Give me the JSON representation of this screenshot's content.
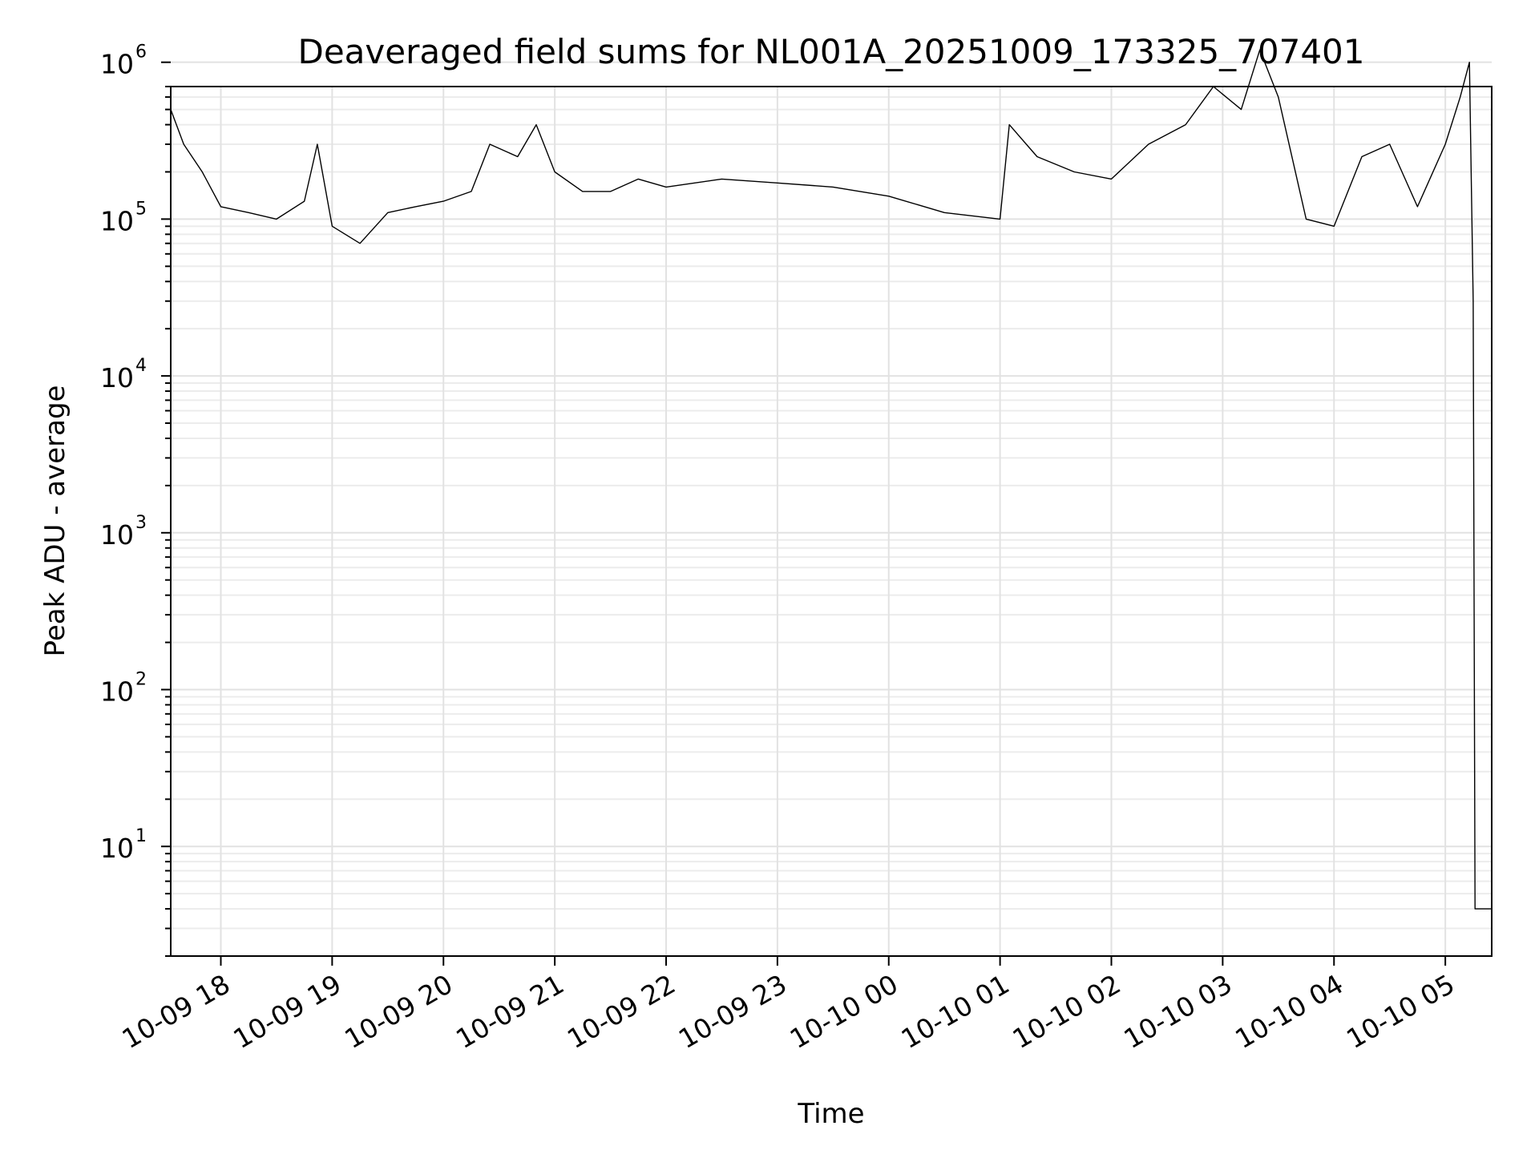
{
  "chart_data": {
    "type": "line",
    "title": "Deaveraged field sums for NL001A_20251009_173325_707401",
    "xlabel": "Time",
    "ylabel": "Peak ADU - average",
    "yscale": "log",
    "ylim": [
      2,
      700000
    ],
    "xlim": [
      "2025-10-09 17:33",
      "2025-10-10 05:25"
    ],
    "grid": true,
    "x_ticks": [
      {
        "value": "2025-10-09 18:00",
        "label": "10-09 18"
      },
      {
        "value": "2025-10-09 19:00",
        "label": "10-09 19"
      },
      {
        "value": "2025-10-09 20:00",
        "label": "10-09 20"
      },
      {
        "value": "2025-10-09 21:00",
        "label": "10-09 21"
      },
      {
        "value": "2025-10-09 22:00",
        "label": "10-09 22"
      },
      {
        "value": "2025-10-09 23:00",
        "label": "10-09 23"
      },
      {
        "value": "2025-10-10 00:00",
        "label": "10-10 00"
      },
      {
        "value": "2025-10-10 01:00",
        "label": "10-10 01"
      },
      {
        "value": "2025-10-10 02:00",
        "label": "10-10 02"
      },
      {
        "value": "2025-10-10 03:00",
        "label": "10-10 03"
      },
      {
        "value": "2025-10-10 04:00",
        "label": "10-10 04"
      },
      {
        "value": "2025-10-10 05:00",
        "label": "10-10 05"
      }
    ],
    "y_ticks": [
      {
        "value": 10,
        "base": "10",
        "exp": "1"
      },
      {
        "value": 100,
        "base": "10",
        "exp": "2"
      },
      {
        "value": 1000,
        "base": "10",
        "exp": "3"
      },
      {
        "value": 10000,
        "base": "10",
        "exp": "4"
      },
      {
        "value": 100000,
        "base": "10",
        "exp": "5"
      },
      {
        "value": 1000000,
        "base": "10",
        "exp": "6"
      }
    ],
    "series": [
      {
        "color": "#000000",
        "x": [
          "2025-10-09 17:33",
          "2025-10-09 17:40",
          "2025-10-09 17:50",
          "2025-10-09 18:00",
          "2025-10-09 18:15",
          "2025-10-09 18:30",
          "2025-10-09 18:45",
          "2025-10-09 18:52",
          "2025-10-09 19:00",
          "2025-10-09 19:15",
          "2025-10-09 19:30",
          "2025-10-09 19:45",
          "2025-10-09 20:00",
          "2025-10-09 20:15",
          "2025-10-09 20:25",
          "2025-10-09 20:40",
          "2025-10-09 20:50",
          "2025-10-09 21:00",
          "2025-10-09 21:15",
          "2025-10-09 21:30",
          "2025-10-09 21:45",
          "2025-10-09 22:00",
          "2025-10-09 22:30",
          "2025-10-09 23:00",
          "2025-10-09 23:30",
          "2025-10-10 00:00",
          "2025-10-10 00:30",
          "2025-10-10 01:00",
          "2025-10-10 01:05",
          "2025-10-10 01:20",
          "2025-10-10 01:40",
          "2025-10-10 02:00",
          "2025-10-10 02:20",
          "2025-10-10 02:40",
          "2025-10-10 02:55",
          "2025-10-10 03:10",
          "2025-10-10 03:20",
          "2025-10-10 03:30",
          "2025-10-10 03:45",
          "2025-10-10 04:00",
          "2025-10-10 04:15",
          "2025-10-10 04:30",
          "2025-10-10 04:45",
          "2025-10-10 05:00",
          "2025-10-10 05:08",
          "2025-10-10 05:13",
          "2025-10-10 05:15",
          "2025-10-10 05:16",
          "2025-10-10 05:25"
        ],
        "y": [
          500000,
          300000,
          200000,
          120000,
          110000,
          100000,
          130000,
          300000,
          90000,
          70000,
          110000,
          120000,
          130000,
          150000,
          300000,
          250000,
          400000,
          200000,
          150000,
          150000,
          180000,
          160000,
          180000,
          170000,
          160000,
          140000,
          110000,
          100000,
          400000,
          250000,
          200000,
          180000,
          300000,
          400000,
          700000,
          500000,
          1200000,
          600000,
          100000,
          90000,
          250000,
          300000,
          120000,
          300000,
          600000,
          1000000,
          30000,
          4,
          4
        ]
      }
    ]
  }
}
